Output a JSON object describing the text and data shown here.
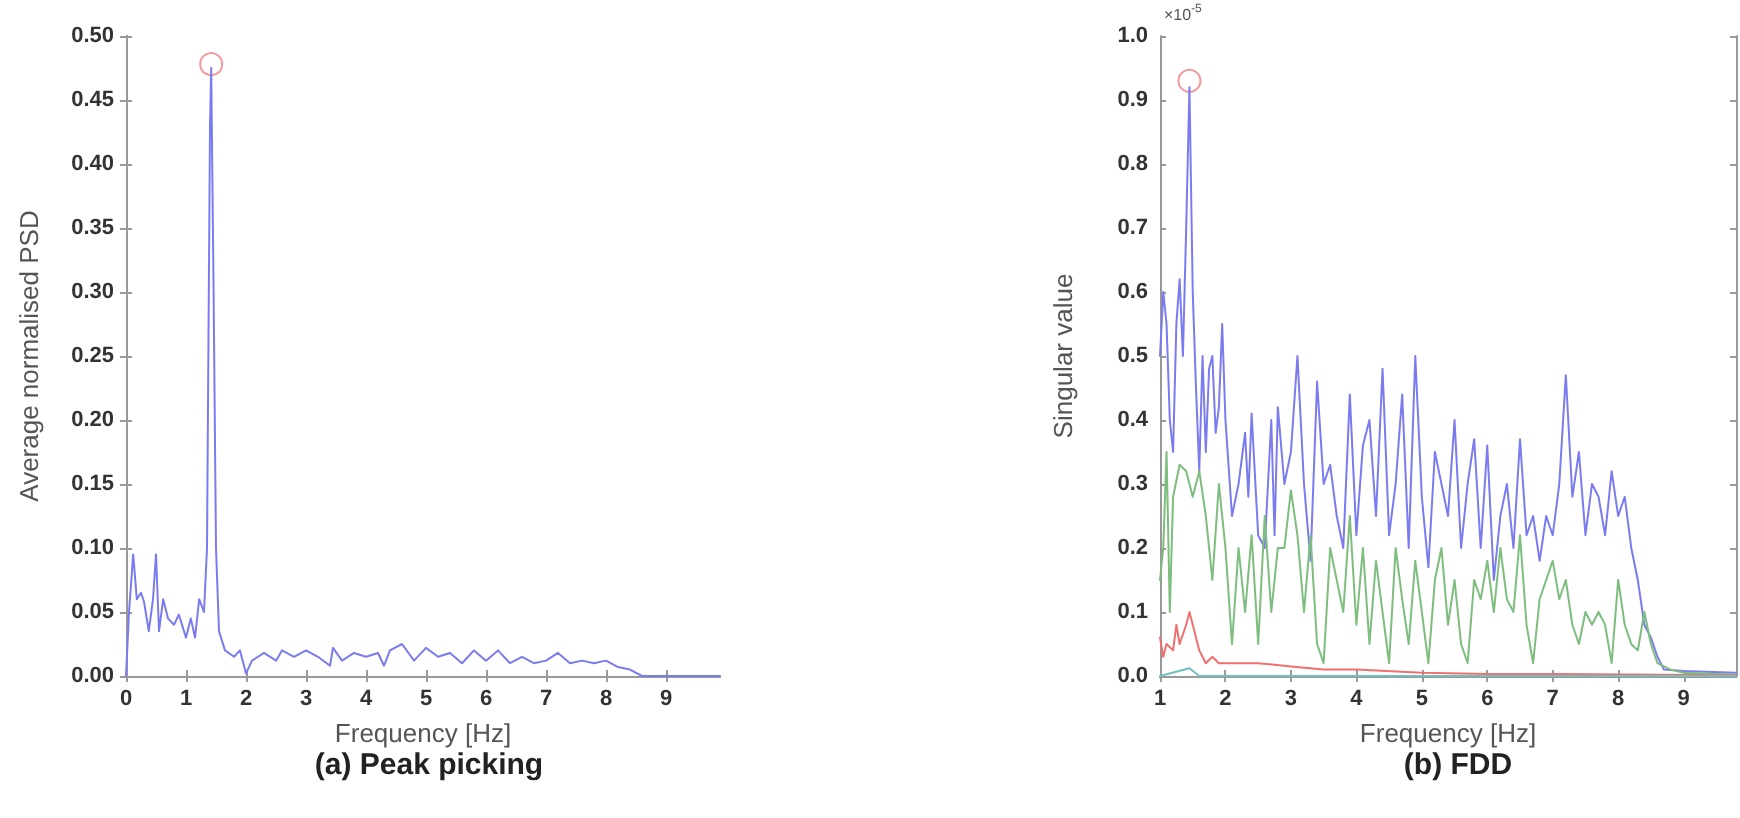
{
  "chart_data": [
    {
      "type": "line",
      "title": "(a) Peak picking",
      "xlabel": "Frequency [Hz]",
      "ylabel": "Average normalised PSD",
      "xlim": [
        0,
        9.9
      ],
      "ylim": [
        0,
        0.5
      ],
      "xticks": [
        0,
        1,
        2,
        3,
        4,
        5,
        6,
        7,
        8,
        9
      ],
      "yticks": [
        {
          "value": 0,
          "label": "0.00"
        },
        {
          "value": 0.05,
          "label": "0.05"
        },
        {
          "value": 0.1,
          "label": "0.10"
        },
        {
          "value": 0.15,
          "label": "0.15"
        },
        {
          "value": 0.2,
          "label": "0.20"
        },
        {
          "value": 0.25,
          "label": "0.25"
        },
        {
          "value": 0.3,
          "label": "0.30"
        },
        {
          "value": 0.35,
          "label": "0.35"
        },
        {
          "value": 0.4,
          "label": "0.40"
        },
        {
          "value": 0.45,
          "label": "0.45"
        },
        {
          "value": 0.5,
          "label": "0.50"
        }
      ],
      "grid": false,
      "marker": "none",
      "line_style": "solid",
      "series": [
        {
          "color": "#7b7bf0",
          "x": [
            0,
            0.05,
            0.12,
            0.18,
            0.25,
            0.3,
            0.38,
            0.45,
            0.5,
            0.55,
            0.62,
            0.7,
            0.8,
            0.88,
            1.0,
            1.08,
            1.15,
            1.22,
            1.3,
            1.35,
            1.4,
            1.42,
            1.46,
            1.5,
            1.55,
            1.65,
            1.8,
            1.9,
            2.0,
            2.1,
            2.3,
            2.5,
            2.6,
            2.8,
            3.0,
            3.2,
            3.4,
            3.45,
            3.6,
            3.8,
            4.0,
            4.2,
            4.3,
            4.4,
            4.6,
            4.8,
            5.0,
            5.2,
            5.4,
            5.6,
            5.8,
            6.0,
            6.2,
            6.4,
            6.6,
            6.8,
            7.0,
            7.2,
            7.4,
            7.6,
            7.8,
            8.0,
            8.2,
            8.4,
            8.6,
            9.9
          ],
          "values": [
            0,
            0.05,
            0.095,
            0.06,
            0.065,
            0.058,
            0.035,
            0.06,
            0.095,
            0.035,
            0.06,
            0.045,
            0.04,
            0.048,
            0.03,
            0.045,
            0.03,
            0.06,
            0.05,
            0.1,
            0.43,
            0.475,
            0.3,
            0.1,
            0.035,
            0.02,
            0.015,
            0.02,
            0.002,
            0.012,
            0.018,
            0.012,
            0.02,
            0.015,
            0.02,
            0.015,
            0.008,
            0.022,
            0.012,
            0.018,
            0.015,
            0.018,
            0.008,
            0.02,
            0.025,
            0.012,
            0.022,
            0.015,
            0.018,
            0.01,
            0.02,
            0.012,
            0.02,
            0.01,
            0.015,
            0.01,
            0.012,
            0.018,
            0.01,
            0.012,
            0.01,
            0.012,
            0.007,
            0.005,
            0,
            0
          ]
        },
        {
          "type": "scatter",
          "marker": "circle",
          "color": "#f08080",
          "x": [
            1.42
          ],
          "values": [
            0.478
          ]
        }
      ]
    },
    {
      "type": "line",
      "title": "(b) FDD",
      "xlabel": "Frequency [Hz]",
      "ylabel": "Singular value",
      "annotations": [
        "×10$^{-5}$"
      ],
      "xlim": [
        1,
        9.8
      ],
      "ylim": [
        0,
        1
      ],
      "xticks": [
        1,
        2,
        3,
        4,
        5,
        6,
        7,
        8,
        9
      ],
      "yticks": [
        {
          "value": 0,
          "label": "0.0"
        },
        {
          "value": 0.1,
          "label": "0.1"
        },
        {
          "value": 0.2,
          "label": "0.2"
        },
        {
          "value": 0.3,
          "label": "0.3"
        },
        {
          "value": 0.4,
          "label": "0.4"
        },
        {
          "value": 0.5,
          "label": "0.5"
        },
        {
          "value": 0.6,
          "label": "0.6"
        },
        {
          "value": 0.7,
          "label": "0.7"
        },
        {
          "value": 0.8,
          "label": "0.8"
        },
        {
          "value": 0.9,
          "label": "0.9"
        },
        {
          "value": 1,
          "label": "1.0"
        }
      ],
      "grid": false,
      "marker": "none",
      "line_style": "solid",
      "series": [
        {
          "color": "#7b7bf0",
          "x": [
            1,
            1.05,
            1.1,
            1.15,
            1.2,
            1.25,
            1.3,
            1.35,
            1.4,
            1.45,
            1.5,
            1.55,
            1.6,
            1.65,
            1.7,
            1.75,
            1.8,
            1.85,
            1.9,
            1.95,
            2.0,
            2.1,
            2.2,
            2.3,
            2.35,
            2.4,
            2.5,
            2.6,
            2.7,
            2.75,
            2.8,
            2.9,
            3.0,
            3.1,
            3.2,
            3.3,
            3.4,
            3.5,
            3.6,
            3.7,
            3.8,
            3.9,
            4.0,
            4.1,
            4.2,
            4.3,
            4.4,
            4.5,
            4.6,
            4.7,
            4.8,
            4.9,
            5.0,
            5.1,
            5.2,
            5.3,
            5.4,
            5.5,
            5.6,
            5.7,
            5.8,
            5.9,
            6.0,
            6.1,
            6.2,
            6.3,
            6.4,
            6.5,
            6.6,
            6.7,
            6.8,
            6.9,
            7.0,
            7.1,
            7.2,
            7.3,
            7.4,
            7.5,
            7.6,
            7.7,
            7.8,
            7.9,
            8.0,
            8.1,
            8.2,
            8.3,
            8.4,
            8.5,
            8.6,
            8.7,
            9.0,
            9.8
          ],
          "values": [
            0.5,
            0.6,
            0.55,
            0.4,
            0.35,
            0.55,
            0.62,
            0.5,
            0.7,
            0.92,
            0.6,
            0.45,
            0.32,
            0.5,
            0.35,
            0.48,
            0.5,
            0.38,
            0.42,
            0.55,
            0.4,
            0.25,
            0.3,
            0.38,
            0.28,
            0.41,
            0.22,
            0.2,
            0.4,
            0.22,
            0.42,
            0.3,
            0.35,
            0.5,
            0.3,
            0.18,
            0.46,
            0.3,
            0.33,
            0.25,
            0.2,
            0.44,
            0.22,
            0.36,
            0.4,
            0.25,
            0.48,
            0.22,
            0.3,
            0.44,
            0.2,
            0.5,
            0.28,
            0.17,
            0.35,
            0.3,
            0.25,
            0.4,
            0.2,
            0.3,
            0.37,
            0.2,
            0.36,
            0.15,
            0.25,
            0.3,
            0.2,
            0.37,
            0.22,
            0.25,
            0.18,
            0.25,
            0.22,
            0.3,
            0.47,
            0.28,
            0.35,
            0.22,
            0.3,
            0.28,
            0.22,
            0.32,
            0.25,
            0.28,
            0.2,
            0.15,
            0.08,
            0.06,
            0.03,
            0.01,
            0.008,
            0.005
          ]
        },
        {
          "color": "#7dbd7d",
          "x": [
            1,
            1.05,
            1.1,
            1.15,
            1.2,
            1.3,
            1.4,
            1.5,
            1.6,
            1.7,
            1.8,
            1.9,
            2.0,
            2.1,
            2.2,
            2.3,
            2.4,
            2.5,
            2.6,
            2.7,
            2.8,
            2.9,
            3.0,
            3.1,
            3.2,
            3.3,
            3.4,
            3.5,
            3.6,
            3.7,
            3.8,
            3.9,
            4.0,
            4.1,
            4.2,
            4.3,
            4.4,
            4.5,
            4.6,
            4.7,
            4.8,
            4.9,
            5.0,
            5.1,
            5.2,
            5.3,
            5.4,
            5.5,
            5.6,
            5.7,
            5.8,
            5.9,
            6.0,
            6.1,
            6.2,
            6.3,
            6.4,
            6.5,
            6.6,
            6.7,
            6.8,
            6.9,
            7.0,
            7.1,
            7.2,
            7.3,
            7.4,
            7.5,
            7.6,
            7.7,
            7.8,
            7.9,
            8.0,
            8.1,
            8.2,
            8.3,
            8.4,
            8.5,
            8.6,
            8.8,
            9.0,
            9.8
          ],
          "values": [
            0.15,
            0.2,
            0.35,
            0.1,
            0.28,
            0.33,
            0.32,
            0.28,
            0.32,
            0.25,
            0.15,
            0.3,
            0.2,
            0.05,
            0.2,
            0.1,
            0.22,
            0.05,
            0.25,
            0.1,
            0.2,
            0.2,
            0.29,
            0.22,
            0.1,
            0.22,
            0.05,
            0.02,
            0.2,
            0.15,
            0.1,
            0.25,
            0.08,
            0.2,
            0.05,
            0.18,
            0.1,
            0.02,
            0.2,
            0.12,
            0.05,
            0.18,
            0.1,
            0.02,
            0.15,
            0.2,
            0.08,
            0.15,
            0.05,
            0.02,
            0.15,
            0.12,
            0.18,
            0.1,
            0.2,
            0.12,
            0.1,
            0.22,
            0.08,
            0.02,
            0.12,
            0.15,
            0.18,
            0.12,
            0.15,
            0.08,
            0.05,
            0.1,
            0.08,
            0.1,
            0.08,
            0.02,
            0.15,
            0.08,
            0.05,
            0.04,
            0.1,
            0.05,
            0.02,
            0.01,
            0.005,
            0.002
          ]
        },
        {
          "color": "#f07070",
          "x": [
            1,
            1.05,
            1.1,
            1.2,
            1.25,
            1.3,
            1.4,
            1.45,
            1.5,
            1.6,
            1.7,
            1.8,
            1.9,
            2.0,
            2.5,
            3.0,
            3.5,
            4.0,
            5.0,
            6.0,
            7.0,
            9.8
          ],
          "values": [
            0.06,
            0.03,
            0.05,
            0.04,
            0.08,
            0.05,
            0.08,
            0.1,
            0.08,
            0.04,
            0.02,
            0.03,
            0.02,
            0.02,
            0.02,
            0.015,
            0.01,
            0.01,
            0.005,
            0.003,
            0.003,
            0.001
          ]
        },
        {
          "color": "#70c0c0",
          "x": [
            1,
            1.45,
            1.6,
            9.8
          ],
          "values": [
            0,
            0.012,
            0,
            0
          ]
        },
        {
          "type": "scatter",
          "marker": "circle",
          "color": "#f08080",
          "x": [
            1.45
          ],
          "values": [
            0.93
          ]
        }
      ]
    }
  ]
}
